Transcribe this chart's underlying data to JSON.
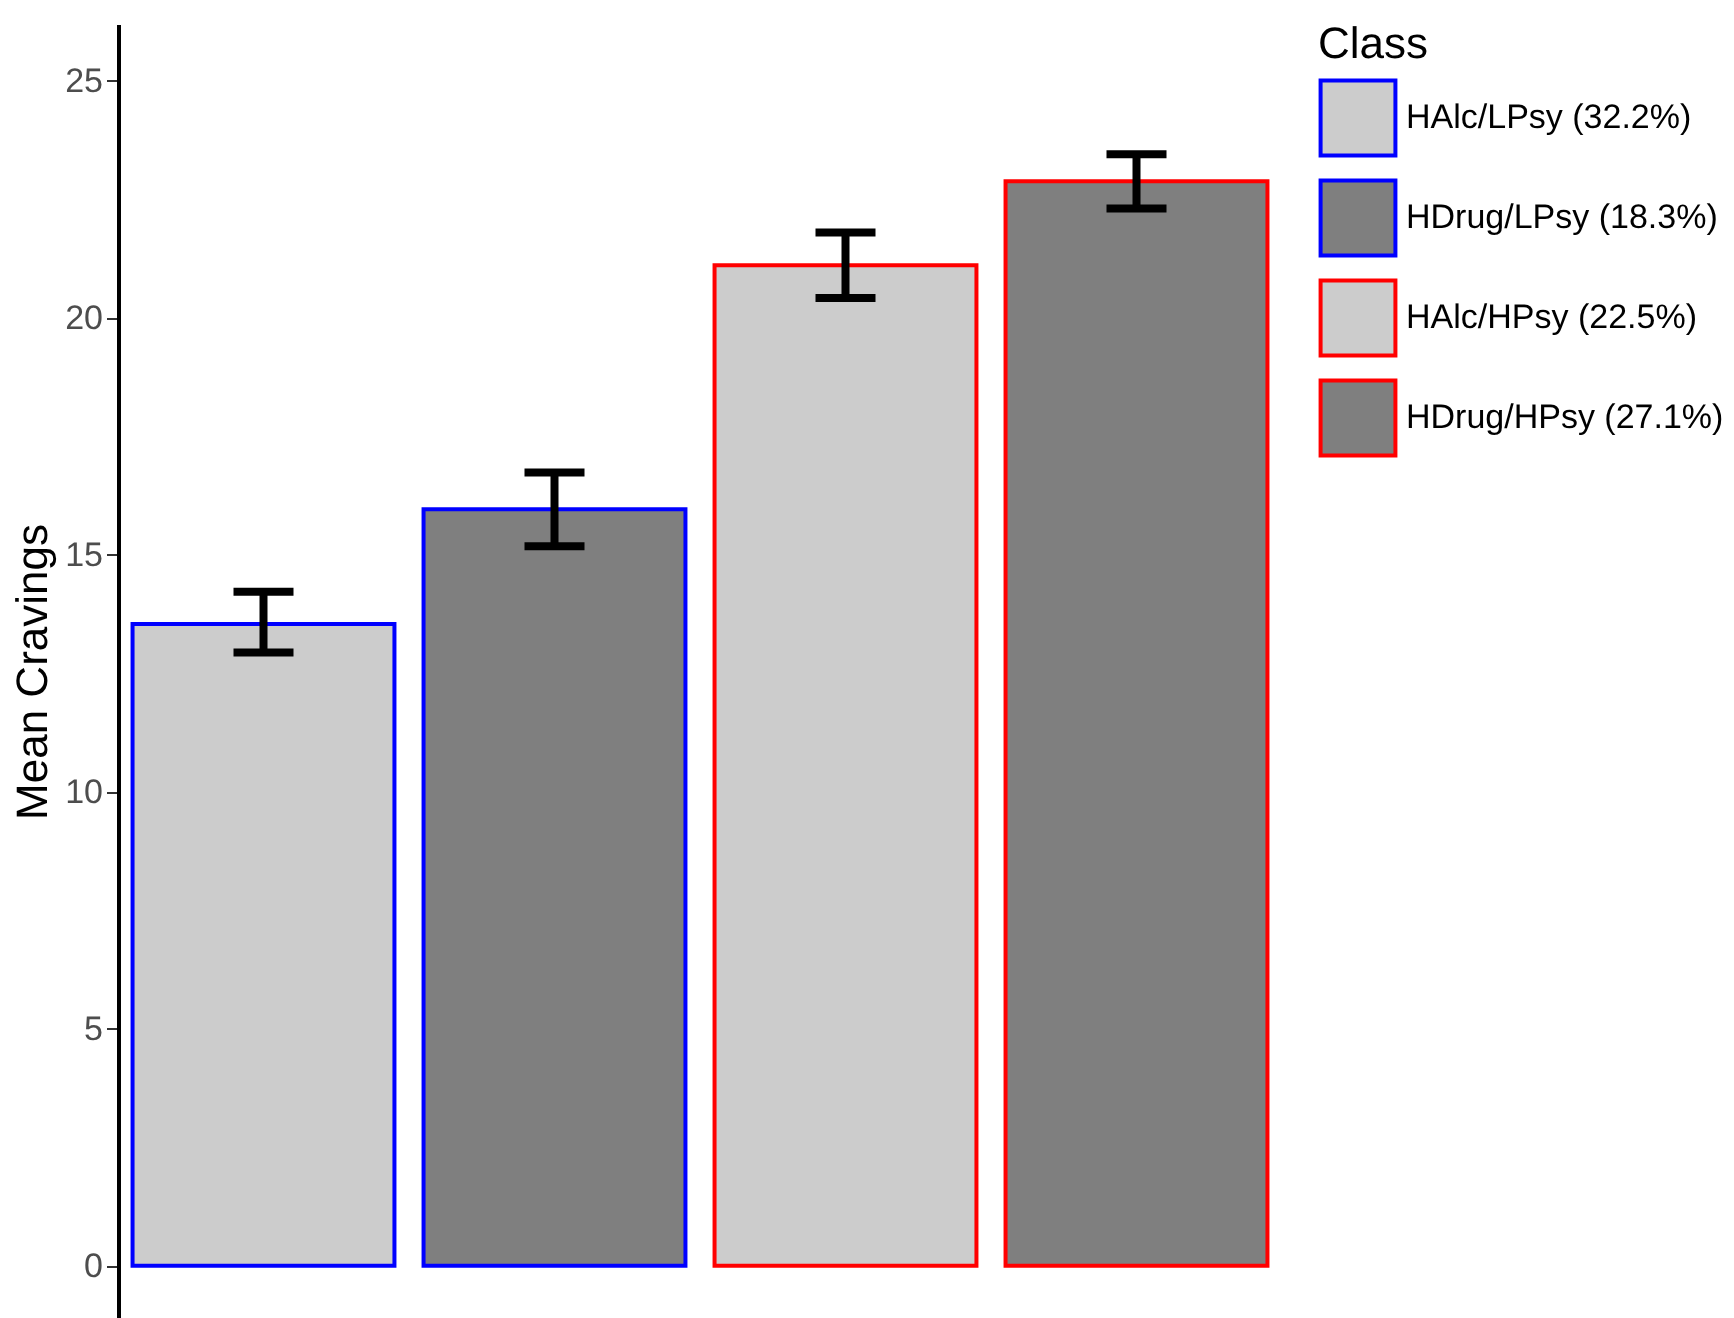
{
  "chart_data": {
    "type": "bar",
    "ylabel": "Mean Cravings",
    "legend_title": "Class",
    "stacked": true,
    "categories": [
      null,
      null,
      null,
      null
    ],
    "series": [
      {
        "name": "HAlc/LPsy (32.2%)",
        "color": "#cccccc",
        "values": [
          13.54,
          null,
          null,
          null
        ],
        "errors": [
          [
            12.94,
            14.22
          ],
          null,
          null,
          null
        ]
      },
      {
        "name": "HDrug/LPsy (18.3%)",
        "color": "#7f7f7f",
        "values": [
          null,
          15.96,
          null,
          null
        ],
        "errors": [
          null,
          [
            15.18,
            16.74
          ],
          null,
          null
        ]
      },
      {
        "name": "HAlc/HPsy (22.5%)",
        "color": "#cccccc",
        "values": [
          null,
          null,
          21.11,
          null
        ],
        "errors": [
          null,
          null,
          [
            20.42,
            21.8
          ],
          null
        ]
      },
      {
        "name": "HDrug/HPsy (27.1%)",
        "color": "#7f7f7f",
        "values": [
          null,
          null,
          null,
          22.88
        ],
        "errors": [
          null,
          null,
          null,
          [
            22.31,
            23.45
          ]
        ]
      }
    ],
    "ylim": [
      -1.1,
      26.2
    ],
    "yticks": [
      0,
      5,
      10,
      15,
      20,
      25
    ],
    "grid": false,
    "legend": "right",
    "tick_labels": "y"
  }
}
